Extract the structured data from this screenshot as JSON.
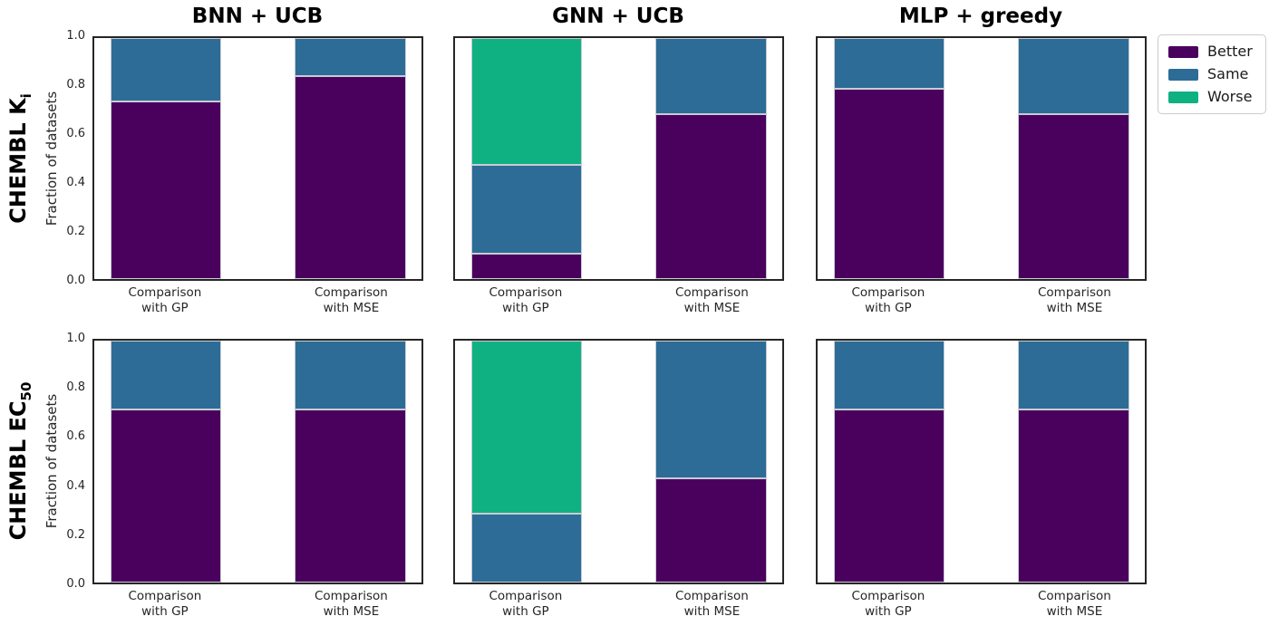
{
  "figure": {
    "column_titles": [
      "BNN + UCB",
      "GNN + UCB",
      "MLP + greedy"
    ],
    "row_labels": [
      {
        "text": "CHEMBL K",
        "subscript": "i"
      },
      {
        "text": "CHEMBL EC",
        "subscript": "50"
      }
    ],
    "y_axis_label": "Fraction of datasets",
    "legend": {
      "items": [
        {
          "label": "Better",
          "color": "#4a015d"
        },
        {
          "label": "Same",
          "color": "#2c6c96"
        },
        {
          "label": "Worse",
          "color": "#0fb183"
        }
      ]
    }
  },
  "chart_data": {
    "type": "bar",
    "stacked": true,
    "orientation": "vertical",
    "title": "",
    "ylabel": "Fraction of datasets",
    "ylim": [
      0,
      1
    ],
    "yticks": [
      0.0,
      0.2,
      0.4,
      0.6,
      0.8,
      1.0
    ],
    "grid": false,
    "legend_position": "outside upper right",
    "categories": [
      "Comparison\nwith GP",
      "Comparison\nwith MSE"
    ],
    "series_order": [
      "Better",
      "Same",
      "Worse"
    ],
    "colors": {
      "Better": "#4a015d",
      "Same": "#2c6c96",
      "Worse": "#0fb183"
    },
    "rows": [
      {
        "row_label": "CHEMBL K_i",
        "panels": [
          {
            "column": "BNN + UCB",
            "bars": [
              {
                "category": "Comparison with GP",
                "Better": 0.737,
                "Same": 0.263,
                "Worse": 0.0
              },
              {
                "category": "Comparison with MSE",
                "Better": 0.842,
                "Same": 0.158,
                "Worse": 0.0
              }
            ]
          },
          {
            "column": "GNN + UCB",
            "bars": [
              {
                "category": "Comparison with GP",
                "Better": 0.105,
                "Same": 0.368,
                "Worse": 0.527
              },
              {
                "category": "Comparison with MSE",
                "Better": 0.684,
                "Same": 0.316,
                "Worse": 0.0
              }
            ]
          },
          {
            "column": "MLP + greedy",
            "bars": [
              {
                "category": "Comparison with GP",
                "Better": 0.789,
                "Same": 0.211,
                "Worse": 0.0
              },
              {
                "category": "Comparison with MSE",
                "Better": 0.684,
                "Same": 0.316,
                "Worse": 0.0
              }
            ]
          }
        ]
      },
      {
        "row_label": "CHEMBL EC_50",
        "panels": [
          {
            "column": "BNN + UCB",
            "bars": [
              {
                "category": "Comparison with GP",
                "Better": 0.714,
                "Same": 0.286,
                "Worse": 0.0
              },
              {
                "category": "Comparison with MSE",
                "Better": 0.714,
                "Same": 0.286,
                "Worse": 0.0
              }
            ]
          },
          {
            "column": "GNN + UCB",
            "bars": [
              {
                "category": "Comparison with GP",
                "Better": 0.0,
                "Same": 0.286,
                "Worse": 0.714
              },
              {
                "category": "Comparison with MSE",
                "Better": 0.429,
                "Same": 0.571,
                "Worse": 0.0
              }
            ]
          },
          {
            "column": "MLP + greedy",
            "bars": [
              {
                "category": "Comparison with GP",
                "Better": 0.714,
                "Same": 0.286,
                "Worse": 0.0
              },
              {
                "category": "Comparison with MSE",
                "Better": 0.714,
                "Same": 0.286,
                "Worse": 0.0
              }
            ]
          }
        ]
      }
    ]
  }
}
